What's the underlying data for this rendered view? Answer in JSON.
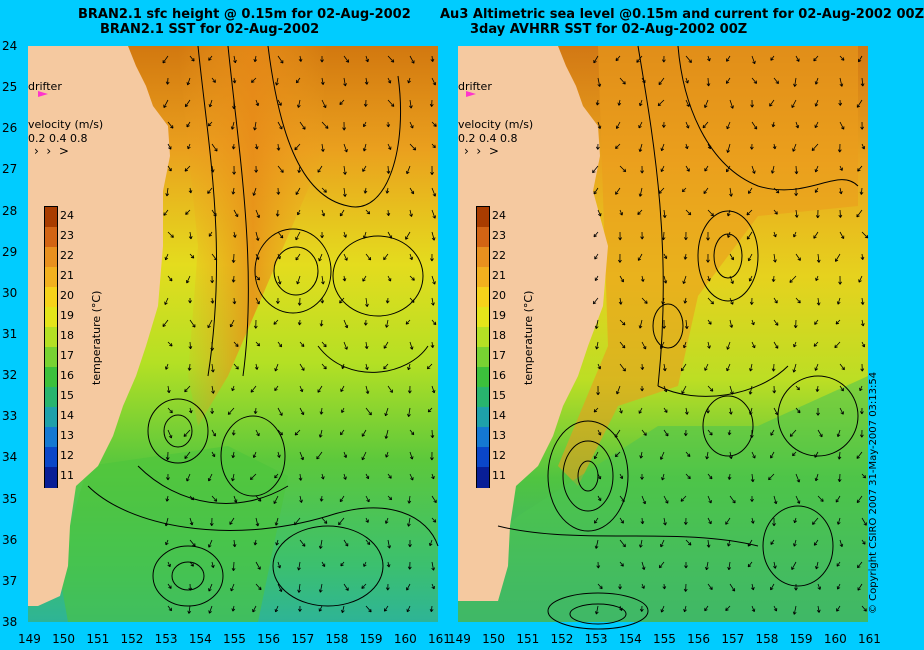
{
  "left_panel": {
    "title_line1": "BRAN2.1 sfc height @ 0.15m for 02-Aug-2002",
    "title_line2": "BRAN2.1 SST for 02-Aug-2002"
  },
  "right_panel": {
    "title_line1": "Au3 Altimetric sea level  @0.15m and current for 02-Aug-2002 00Z",
    "title_line2": "3day AVHRR SST for 02-Aug-2002 00Z"
  },
  "legend": {
    "drifter_label": "drifter",
    "velocity_label": "velocity (m/s)",
    "velocity_scale": "0.2 0.4 0.8",
    "temperature_label": "temperature (°C)",
    "temperature_ticks": [
      "24",
      "23",
      "22",
      "21",
      "20",
      "19",
      "18",
      "17",
      "16",
      "15",
      "14",
      "13",
      "12",
      "11"
    ]
  },
  "colorbar_colors": [
    "#a83c00",
    "#d26414",
    "#e8901e",
    "#f2b01e",
    "#f6d21a",
    "#e4e41a",
    "#b4e024",
    "#78d232",
    "#3cc03c",
    "#28b46e",
    "#1ea0aa",
    "#1478d2",
    "#0a46c8",
    "#081e96"
  ],
  "axes": {
    "lat_ticks": [
      "24",
      "25",
      "26",
      "27",
      "28",
      "29",
      "30",
      "31",
      "32",
      "33",
      "34",
      "35",
      "36",
      "37",
      "38"
    ],
    "lon_ticks_left": [
      "149",
      "150",
      "151",
      "152",
      "153",
      "154",
      "155",
      "156",
      "157",
      "158",
      "159",
      "160",
      "161"
    ],
    "lon_ticks_right": [
      "149",
      "150",
      "151",
      "152",
      "153",
      "154",
      "155",
      "156",
      "157",
      "158",
      "159",
      "160",
      "161"
    ]
  },
  "colors": {
    "background": "#00ccff",
    "land": "#f5c9a0",
    "drifter_marker": "#ff33cc"
  },
  "copyright": "© Copyright CSIRO 2007   31-May-2007 03:13:54"
}
